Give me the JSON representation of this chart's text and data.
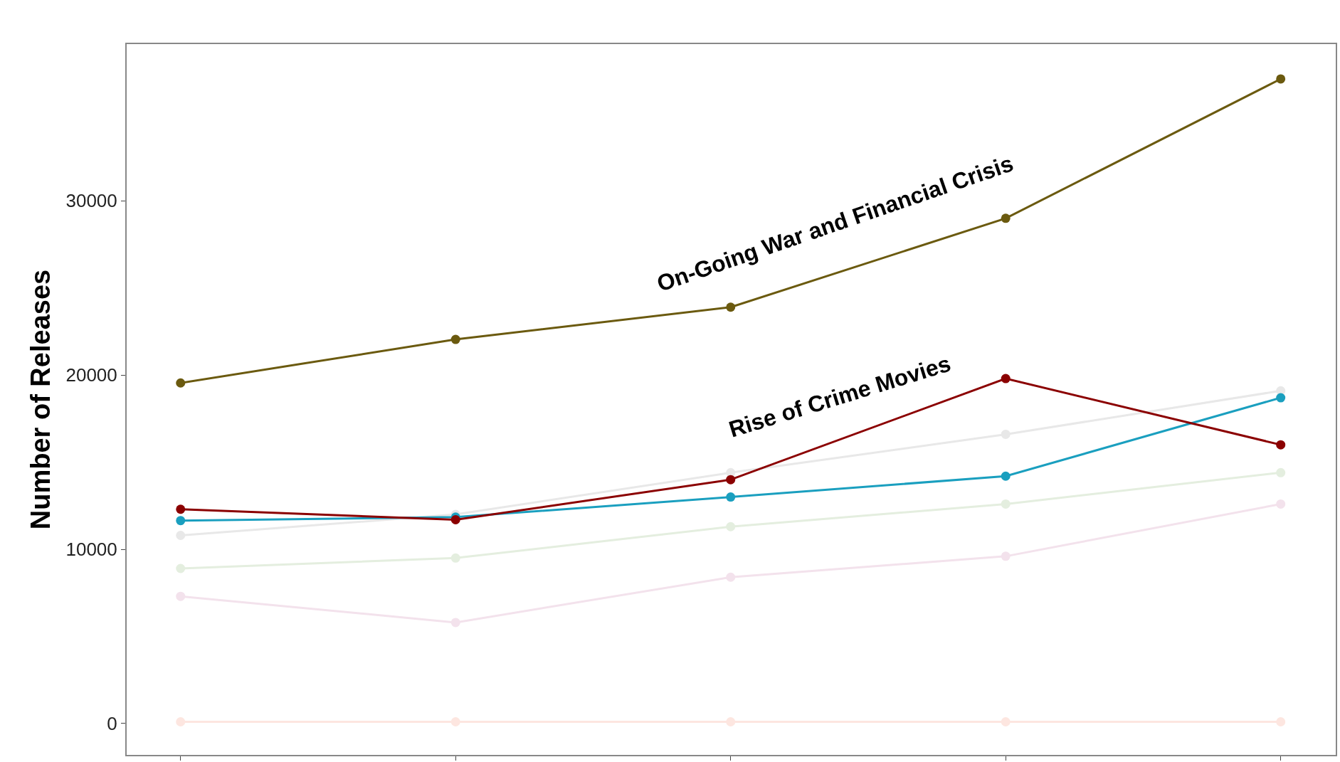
{
  "chart_data": {
    "type": "line",
    "ylabel": "Number of Releases",
    "categories": [
      null,
      null,
      null,
      null,
      null
    ],
    "series": [
      {
        "color": "#fde6e0",
        "values": [
          100,
          100,
          100,
          100,
          100
        ]
      },
      {
        "color": "#f3e2ec",
        "values": [
          7300,
          5800,
          8400,
          9600,
          12600
        ]
      },
      {
        "color": "#e4eedf",
        "values": [
          8900,
          9500,
          11300,
          12600,
          14400
        ]
      },
      {
        "color": "#e8e8e8",
        "values": [
          10800,
          12000,
          14400,
          16600,
          19100
        ]
      },
      {
        "color": "#1a9fbf",
        "values": [
          11650,
          11850,
          13000,
          14200,
          18700
        ]
      },
      {
        "color": "#8b0000",
        "values": [
          12300,
          11700,
          14000,
          19800,
          16000
        ]
      },
      {
        "color": "#6b5a0f",
        "values": [
          19550,
          22050,
          23900,
          29000,
          37000
        ]
      }
    ],
    "ylim": [
      -1800,
      39000
    ],
    "yticks": [
      0,
      10000,
      20000,
      30000
    ],
    "annotations": [
      "On-Going War and Financial Crisis",
      "Rise of Crime Movies"
    ],
    "tick_labels": "y",
    "marker": "circle",
    "line_style": "solid"
  }
}
